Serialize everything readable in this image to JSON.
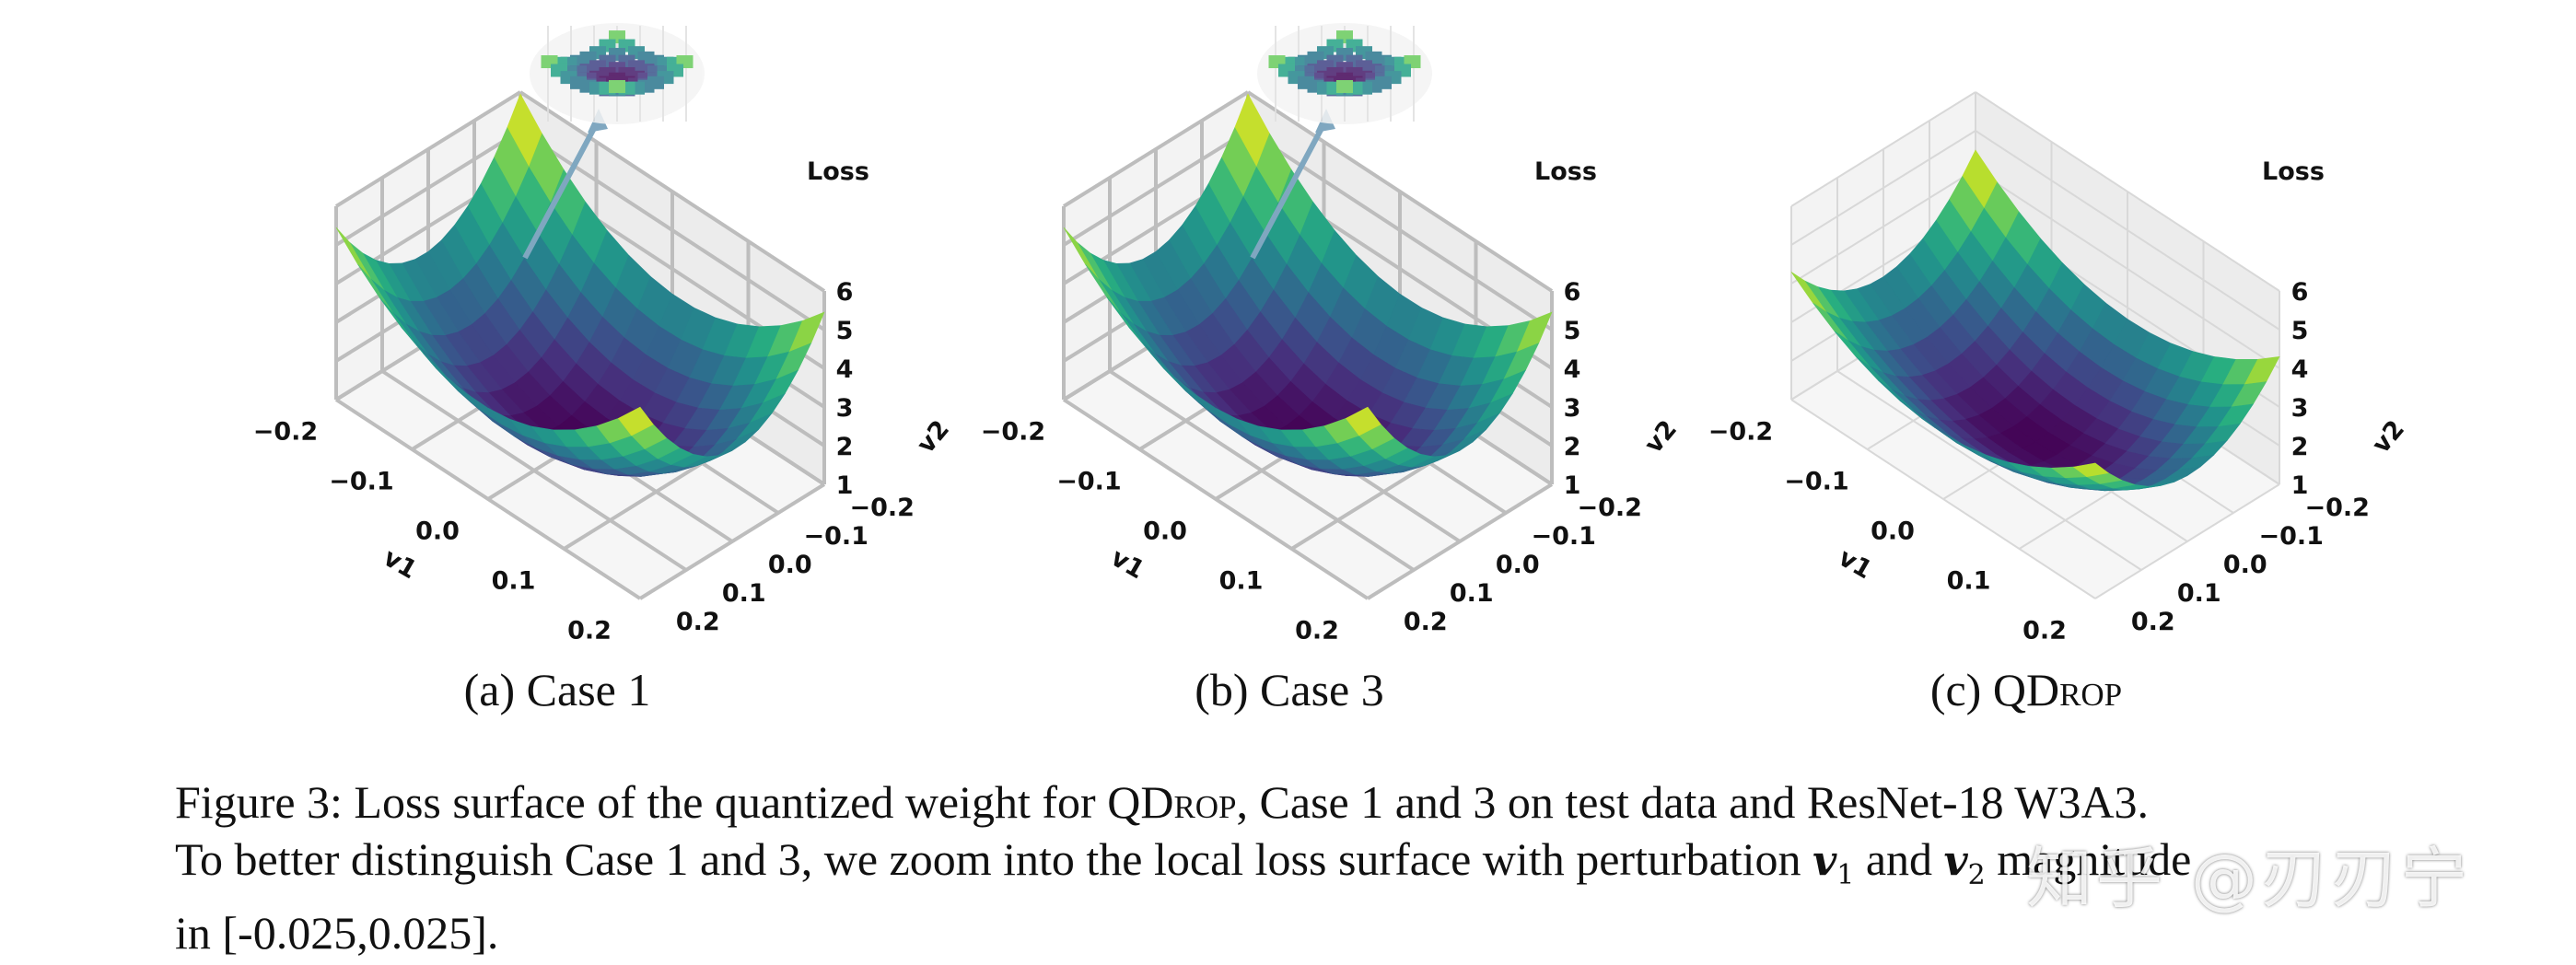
{
  "figure": {
    "panels": [
      {
        "id": "a",
        "subcaption_prefix": "(a) Case 1",
        "subcaption_sc": "",
        "inset_zoom": true,
        "arrow": true
      },
      {
        "id": "b",
        "subcaption_prefix": "(b) Case 3",
        "subcaption_sc": "",
        "inset_zoom": true,
        "arrow": true
      },
      {
        "id": "c",
        "subcaption_prefix": "(c) QD",
        "subcaption_sc": "rop",
        "inset_zoom": false,
        "arrow": false
      }
    ],
    "caption": {
      "line1_a": "Figure 3: Loss surface of the quantized weight for QD",
      "line1_sc": "rop",
      "line1_b": ", Case 1 and 3 on test data and ResNet-18 W3A3.",
      "line2_a": "To better distinguish Case 1 and 3, we zoom into the local loss surface with perturbation ",
      "line2_v1": "v",
      "line2_v1_sub": "1",
      "line2_mid": " and ",
      "line2_v2": "v",
      "line2_v2_sub": "2",
      "line2_b": " magnitude",
      "line3": "in [-0.025,0.025]."
    },
    "watermark": "知乎 @刃刃宁"
  },
  "chart_data": [
    {
      "type": "surface3d",
      "panel": "(a) Case 1",
      "title": "",
      "xlabel": "v1",
      "ylabel": "v2",
      "zlabel": "Loss",
      "x_ticks": [
        "−0.2",
        "−0.1",
        "0.0",
        "0.1",
        "0.2"
      ],
      "y_ticks": [
        "−0.2",
        "−0.1",
        "0.0",
        "0.1",
        "0.2"
      ],
      "z_ticks": [
        "1",
        "2",
        "3",
        "4",
        "5",
        "6"
      ],
      "xlim": [
        -0.2,
        0.2
      ],
      "ylim": [
        -0.2,
        0.2
      ],
      "zlim": [
        1,
        6
      ],
      "surface_min_loss": 1.0,
      "surface_max_loss": 5.7,
      "colormap": "viridis",
      "inset": "zoomed local surface, perturbation in [-0.025,0.025]"
    },
    {
      "type": "surface3d",
      "panel": "(b) Case 3",
      "title": "",
      "xlabel": "v1",
      "ylabel": "v2",
      "zlabel": "Loss",
      "x_ticks": [
        "−0.2",
        "−0.1",
        "0.0",
        "0.1",
        "0.2"
      ],
      "y_ticks": [
        "−0.2",
        "−0.1",
        "0.0",
        "0.1",
        "0.2"
      ],
      "z_ticks": [
        "1",
        "2",
        "3",
        "4",
        "5",
        "6"
      ],
      "xlim": [
        -0.2,
        0.2
      ],
      "ylim": [
        -0.2,
        0.2
      ],
      "zlim": [
        1,
        6
      ],
      "surface_min_loss": 1.0,
      "surface_max_loss": 5.7,
      "colormap": "viridis",
      "inset": "zoomed local surface, perturbation in [-0.025,0.025]"
    },
    {
      "type": "surface3d",
      "panel": "(c) QDrop",
      "title": "",
      "xlabel": "v1",
      "ylabel": "v2",
      "zlabel": "Loss",
      "x_ticks": [
        "−0.2",
        "−0.1",
        "0.0",
        "0.1",
        "0.2"
      ],
      "y_ticks": [
        "−0.2",
        "−0.1",
        "0.0",
        "0.1",
        "0.2"
      ],
      "z_ticks": [
        "1",
        "2",
        "3",
        "4",
        "5",
        "6"
      ],
      "xlim": [
        -0.2,
        0.2
      ],
      "ylim": [
        -0.2,
        0.2
      ],
      "zlim": [
        1,
        6
      ],
      "surface_min_loss": 1.0,
      "surface_max_loss": 4.4,
      "colormap": "viridis"
    }
  ],
  "colors": {
    "viridis": [
      "#440154",
      "#472d7b",
      "#3b528b",
      "#2c728e",
      "#21918c",
      "#28ae80",
      "#5ec962",
      "#addc30",
      "#fde725"
    ],
    "pane": "#f2f2f2",
    "grid": "#bdbdbd"
  }
}
